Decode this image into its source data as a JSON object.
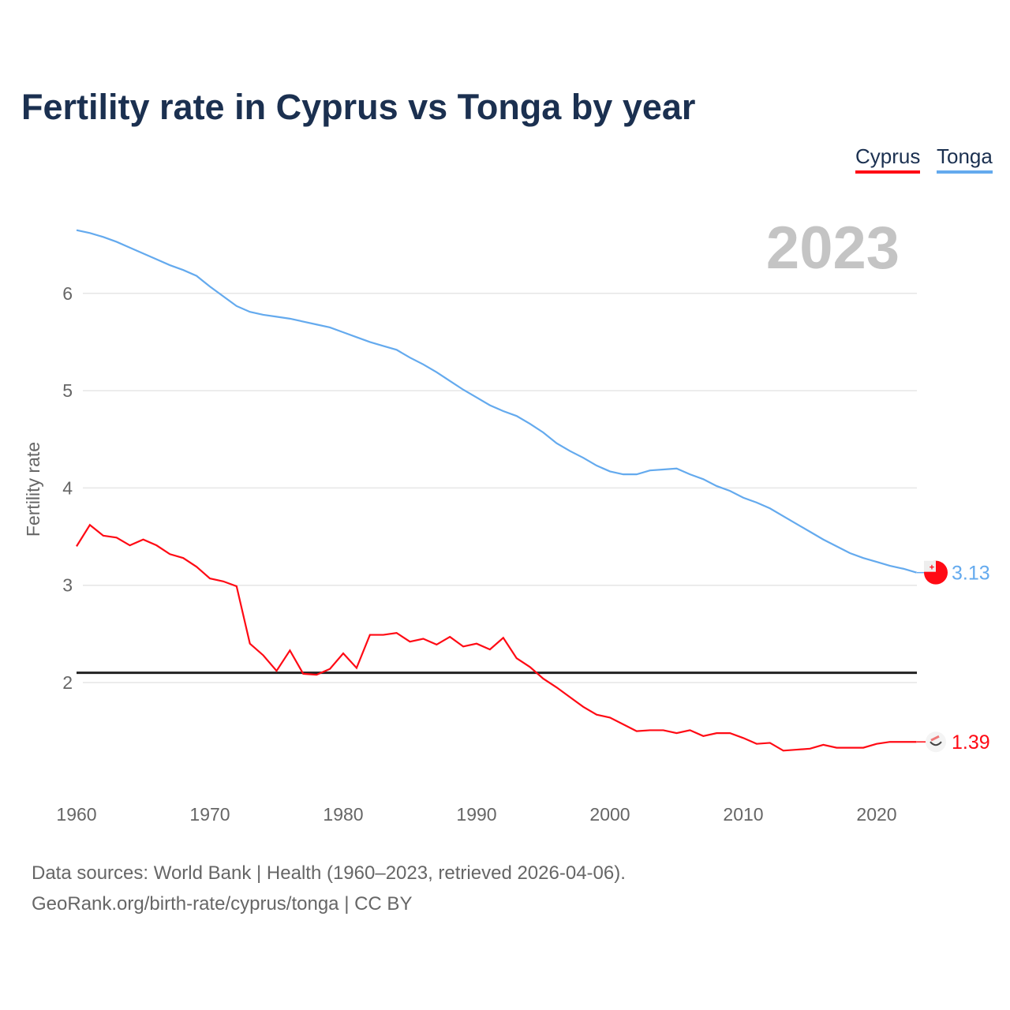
{
  "title": "Fertility rate in Cyprus vs Tonga by year",
  "source_line1": "Data sources: World Bank | Health (1960–2023, retrieved 2026-04-06).",
  "source_line2": "GeoRank.org/birth-rate/cyprus/tonga | CC BY",
  "year_label": "2023",
  "chart_data": {
    "type": "line",
    "title": "Fertility rate in Cyprus vs Tonga by year",
    "xlabel": "",
    "ylabel": "Fertility rate",
    "xlim": [
      1960,
      2023
    ],
    "ylim": [
      1.0,
      6.8
    ],
    "x_ticks": [
      "1960",
      "1970",
      "1980",
      "1990",
      "2000",
      "2010",
      "2020"
    ],
    "y_ticks": [
      "2",
      "3",
      "4",
      "5",
      "6"
    ],
    "reference_line": 2.1,
    "legend": "top-right",
    "x_start": 1960,
    "series": [
      {
        "name": "Cyprus",
        "color": "#ff0a14",
        "end_label": "1.39",
        "values": [
          3.4,
          3.62,
          3.51,
          3.49,
          3.41,
          3.47,
          3.41,
          3.32,
          3.28,
          3.19,
          3.07,
          3.04,
          2.99,
          2.4,
          2.28,
          2.12,
          2.33,
          2.09,
          2.08,
          2.14,
          2.3,
          2.15,
          2.49,
          2.49,
          2.51,
          2.42,
          2.45,
          2.39,
          2.47,
          2.37,
          2.4,
          2.34,
          2.46,
          2.25,
          2.16,
          2.04,
          1.95,
          1.85,
          1.75,
          1.67,
          1.64,
          1.57,
          1.5,
          1.51,
          1.51,
          1.48,
          1.51,
          1.45,
          1.48,
          1.48,
          1.43,
          1.37,
          1.38,
          1.3,
          1.31,
          1.32,
          1.36,
          1.33,
          1.33,
          1.33,
          1.37,
          1.39,
          1.39,
          1.39
        ]
      },
      {
        "name": "Tonga",
        "color": "#64aaee",
        "end_label": "3.13",
        "values": [
          6.65,
          6.62,
          6.58,
          6.53,
          6.47,
          6.41,
          6.35,
          6.29,
          6.24,
          6.18,
          6.07,
          5.97,
          5.87,
          5.81,
          5.78,
          5.76,
          5.74,
          5.71,
          5.68,
          5.65,
          5.6,
          5.55,
          5.5,
          5.46,
          5.42,
          5.34,
          5.27,
          5.19,
          5.1,
          5.01,
          4.93,
          4.85,
          4.79,
          4.74,
          4.66,
          4.57,
          4.46,
          4.38,
          4.31,
          4.23,
          4.17,
          4.14,
          4.14,
          4.18,
          4.19,
          4.2,
          4.14,
          4.09,
          4.02,
          3.97,
          3.9,
          3.85,
          3.79,
          3.71,
          3.63,
          3.55,
          3.47,
          3.4,
          3.33,
          3.28,
          3.24,
          3.2,
          3.17,
          3.13
        ]
      }
    ]
  }
}
